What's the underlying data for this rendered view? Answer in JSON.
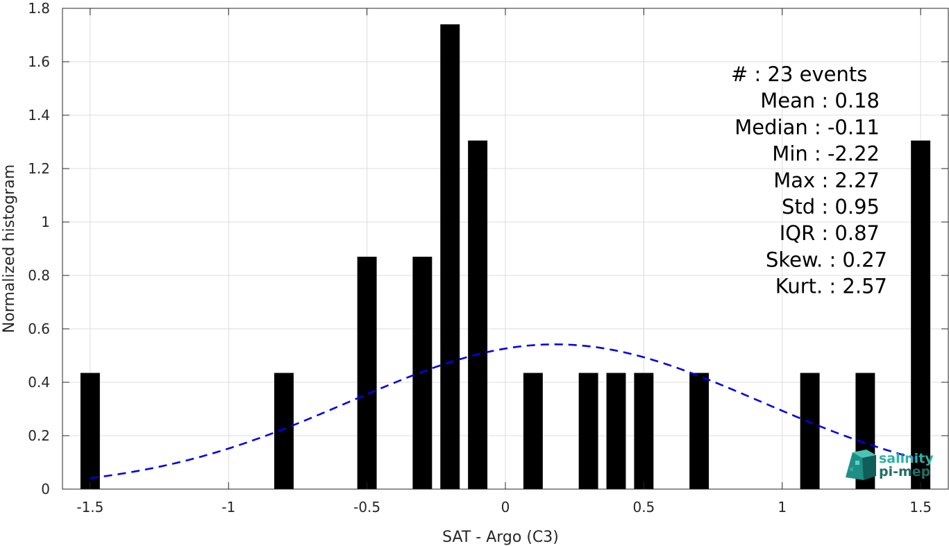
{
  "chart_data": {
    "type": "bar",
    "xlabel": "SAT - Argo (C3)",
    "ylabel": "Normalized histogram",
    "xlim": [
      -1.6,
      1.6
    ],
    "ylim": [
      0,
      1.8
    ],
    "xticks": [
      -1.5,
      -1,
      -0.5,
      0,
      0.5,
      1,
      1.5
    ],
    "xtick_labels": [
      "-1.5",
      "-1",
      "-0.5",
      "0",
      "0.5",
      "1",
      "1.5"
    ],
    "yticks": [
      0,
      0.2,
      0.4,
      0.6,
      0.8,
      1,
      1.2,
      1.4,
      1.6,
      1.8
    ],
    "ytick_labels": [
      "0",
      "0.2",
      "0.4",
      "0.6",
      "0.8",
      "1",
      "1.2",
      "1.4",
      "1.6",
      "1.8"
    ],
    "grid": true,
    "bar_color": "#000000",
    "bar_width": 0.07,
    "bars": {
      "x": [
        -1.5,
        -0.8,
        -0.5,
        -0.3,
        -0.2,
        -0.1,
        0.1,
        0.3,
        0.4,
        0.5,
        0.7,
        1.1,
        1.3,
        1.5
      ],
      "values": [
        0.435,
        0.435,
        0.87,
        0.87,
        1.74,
        1.305,
        0.435,
        0.435,
        0.435,
        0.435,
        0.435,
        0.435,
        0.435,
        1.305
      ]
    },
    "fit_curve": {
      "style": "dashed",
      "color": "#0000ee",
      "mean": 0.18,
      "std": 0.74,
      "peak": 0.542,
      "x_range": [
        -1.5,
        1.5
      ]
    },
    "stats": [
      {
        "label": "#  : 23 events",
        "anchor": "start"
      },
      {
        "label": "Mean : 0.18",
        "anchor": "end"
      },
      {
        "label": "Median : -0.11",
        "anchor": "end"
      },
      {
        "label": "Min : -2.22",
        "anchor": "end"
      },
      {
        "label": "Max : 2.27",
        "anchor": "end"
      },
      {
        "label": "Std : 0.95",
        "anchor": "end"
      },
      {
        "label": "IQR : 0.87",
        "anchor": "end"
      },
      {
        "label": "Skew. : 0.27",
        "anchor": "end"
      },
      {
        "label": "Kurt. : 2.57",
        "anchor": "end"
      }
    ]
  },
  "logo": {
    "line1": "salinity",
    "line2": "pi-mep",
    "color1": "#2ab3a3",
    "color2": "#1f6f6a"
  }
}
